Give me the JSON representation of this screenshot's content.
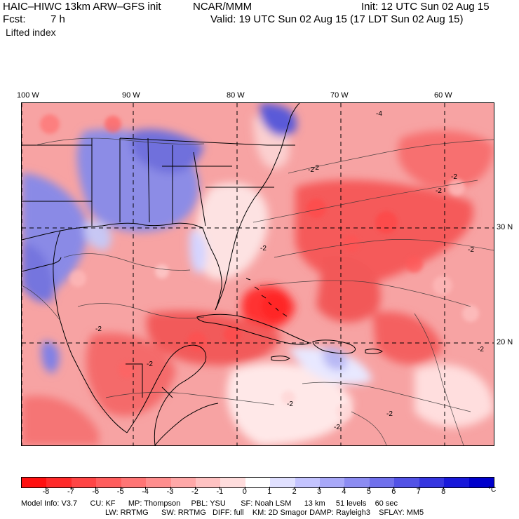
{
  "header": {
    "model_title": "HAIC–HIWC 13km ARW–GFS init",
    "org": "NCAR/MMM",
    "init_text": "Init: 12 UTC Sun 02 Aug 15",
    "fcst_label": "Fcst:",
    "fcst_value": "7 h",
    "valid_text": "Valid: 19 UTC Sun 02 Aug 15 (17 LDT Sun 02 Aug 15)",
    "field_name": "Lifted index"
  },
  "map": {
    "longitude_labels": [
      "100 W",
      "90 W",
      "80 W",
      "70 W",
      "60 W"
    ],
    "latitude_labels": [
      "30 N",
      "20 N"
    ],
    "contour_labels": [
      "-2",
      "-2",
      "-2",
      "-2",
      "-2",
      "-2",
      "-2",
      "-2",
      "-2",
      "-2",
      "-4",
      "-2",
      "-2"
    ]
  },
  "colorbar": {
    "unit": "°C",
    "labels": [
      "-8",
      "-7",
      "-6",
      "-5",
      "-4",
      "-3",
      "-2",
      "-1",
      "0",
      "1",
      "2",
      "3",
      "4",
      "5",
      "6",
      "7",
      "8"
    ],
    "colors": [
      "#ff1010",
      "#ff2a2a",
      "#ff4545",
      "#ff5d5d",
      "#ff7575",
      "#ff8e8e",
      "#ffa8a8",
      "#ffc2c2",
      "#ffdddd",
      "#ffffff",
      "#e0e0ff",
      "#c4c4ff",
      "#a8a8f8",
      "#8c8cf2",
      "#7070ec",
      "#5252e6",
      "#3535e0",
      "#1818da",
      "#0000cc"
    ]
  },
  "footer": {
    "line1": "Model Info: V3.7      CU: KF      MP: Thompson     PBL: YSU       SF: Noah LSM      13 km     51 levels    60 sec",
    "line2": "LW: RRTMG      SW: RRTMG   DIFF: full    KM: 2D Smagor DAMP: Rayleigh3    SFLAY: MM5"
  }
}
